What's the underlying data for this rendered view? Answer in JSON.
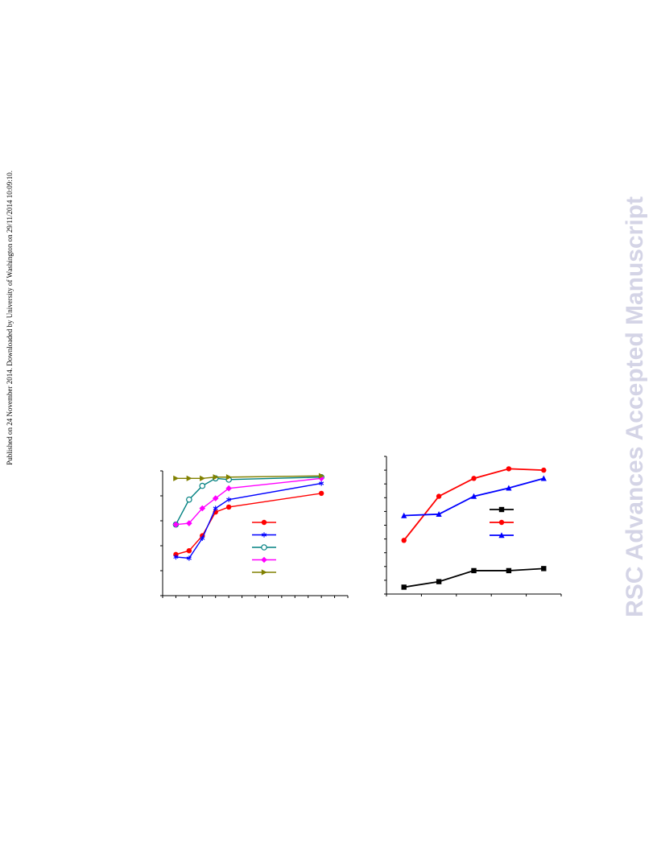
{
  "side_note": "Published on 24 November 2014. Downloaded by University of Washington on 29/11/2014 10:09:10.",
  "watermark": "RSC Advances Accepted Manuscript",
  "colors": {
    "red": "#ff0000",
    "blue": "#0000ff",
    "teal": "#008080",
    "magenta": "#ff00ff",
    "olive": "#808000",
    "black": "#000000"
  },
  "chart_data": [
    {
      "type": "line",
      "xlim": [
        0,
        14
      ],
      "ylim": [
        0,
        100
      ],
      "legend_position": "center-right",
      "series": [
        {
          "color": "#ff0000",
          "marker": "circle",
          "x": [
            1,
            2,
            3,
            4,
            5,
            12
          ],
          "y": [
            33,
            36,
            48,
            67,
            71,
            82
          ]
        },
        {
          "color": "#0000ff",
          "marker": "star",
          "x": [
            1,
            2,
            3,
            4,
            5,
            12
          ],
          "y": [
            31,
            30,
            46,
            70,
            77,
            90
          ]
        },
        {
          "color": "#008080",
          "marker": "open-circle",
          "x": [
            1,
            2,
            3,
            4,
            5,
            12
          ],
          "y": [
            57,
            77,
            88,
            94,
            93,
            95
          ]
        },
        {
          "color": "#ff00ff",
          "marker": "diamond",
          "x": [
            1,
            2,
            3,
            4,
            5,
            12
          ],
          "y": [
            57,
            58,
            70,
            78,
            86,
            94
          ]
        },
        {
          "color": "#808000",
          "marker": "triangle-right",
          "x": [
            1,
            2,
            3,
            4,
            5,
            12
          ],
          "y": [
            94,
            94,
            94,
            95,
            95,
            96
          ]
        }
      ]
    },
    {
      "type": "line",
      "xlim": [
        0,
        5
      ],
      "ylim": [
        0,
        100
      ],
      "legend_position": "center-right",
      "series": [
        {
          "color": "#000000",
          "marker": "square",
          "x": [
            0.5,
            1.5,
            2.5,
            3.5,
            4.5
          ],
          "y": [
            5,
            9,
            17,
            17,
            18.5
          ]
        },
        {
          "color": "#ff0000",
          "marker": "circle",
          "x": [
            0.5,
            1.5,
            2.5,
            3.5,
            4.5
          ],
          "y": [
            39,
            71,
            84,
            91,
            90
          ]
        },
        {
          "color": "#0000ff",
          "marker": "triangle-up",
          "x": [
            0.5,
            1.5,
            2.5,
            3.5,
            4.5
          ],
          "y": [
            57,
            58,
            71,
            77,
            84
          ]
        }
      ]
    }
  ]
}
